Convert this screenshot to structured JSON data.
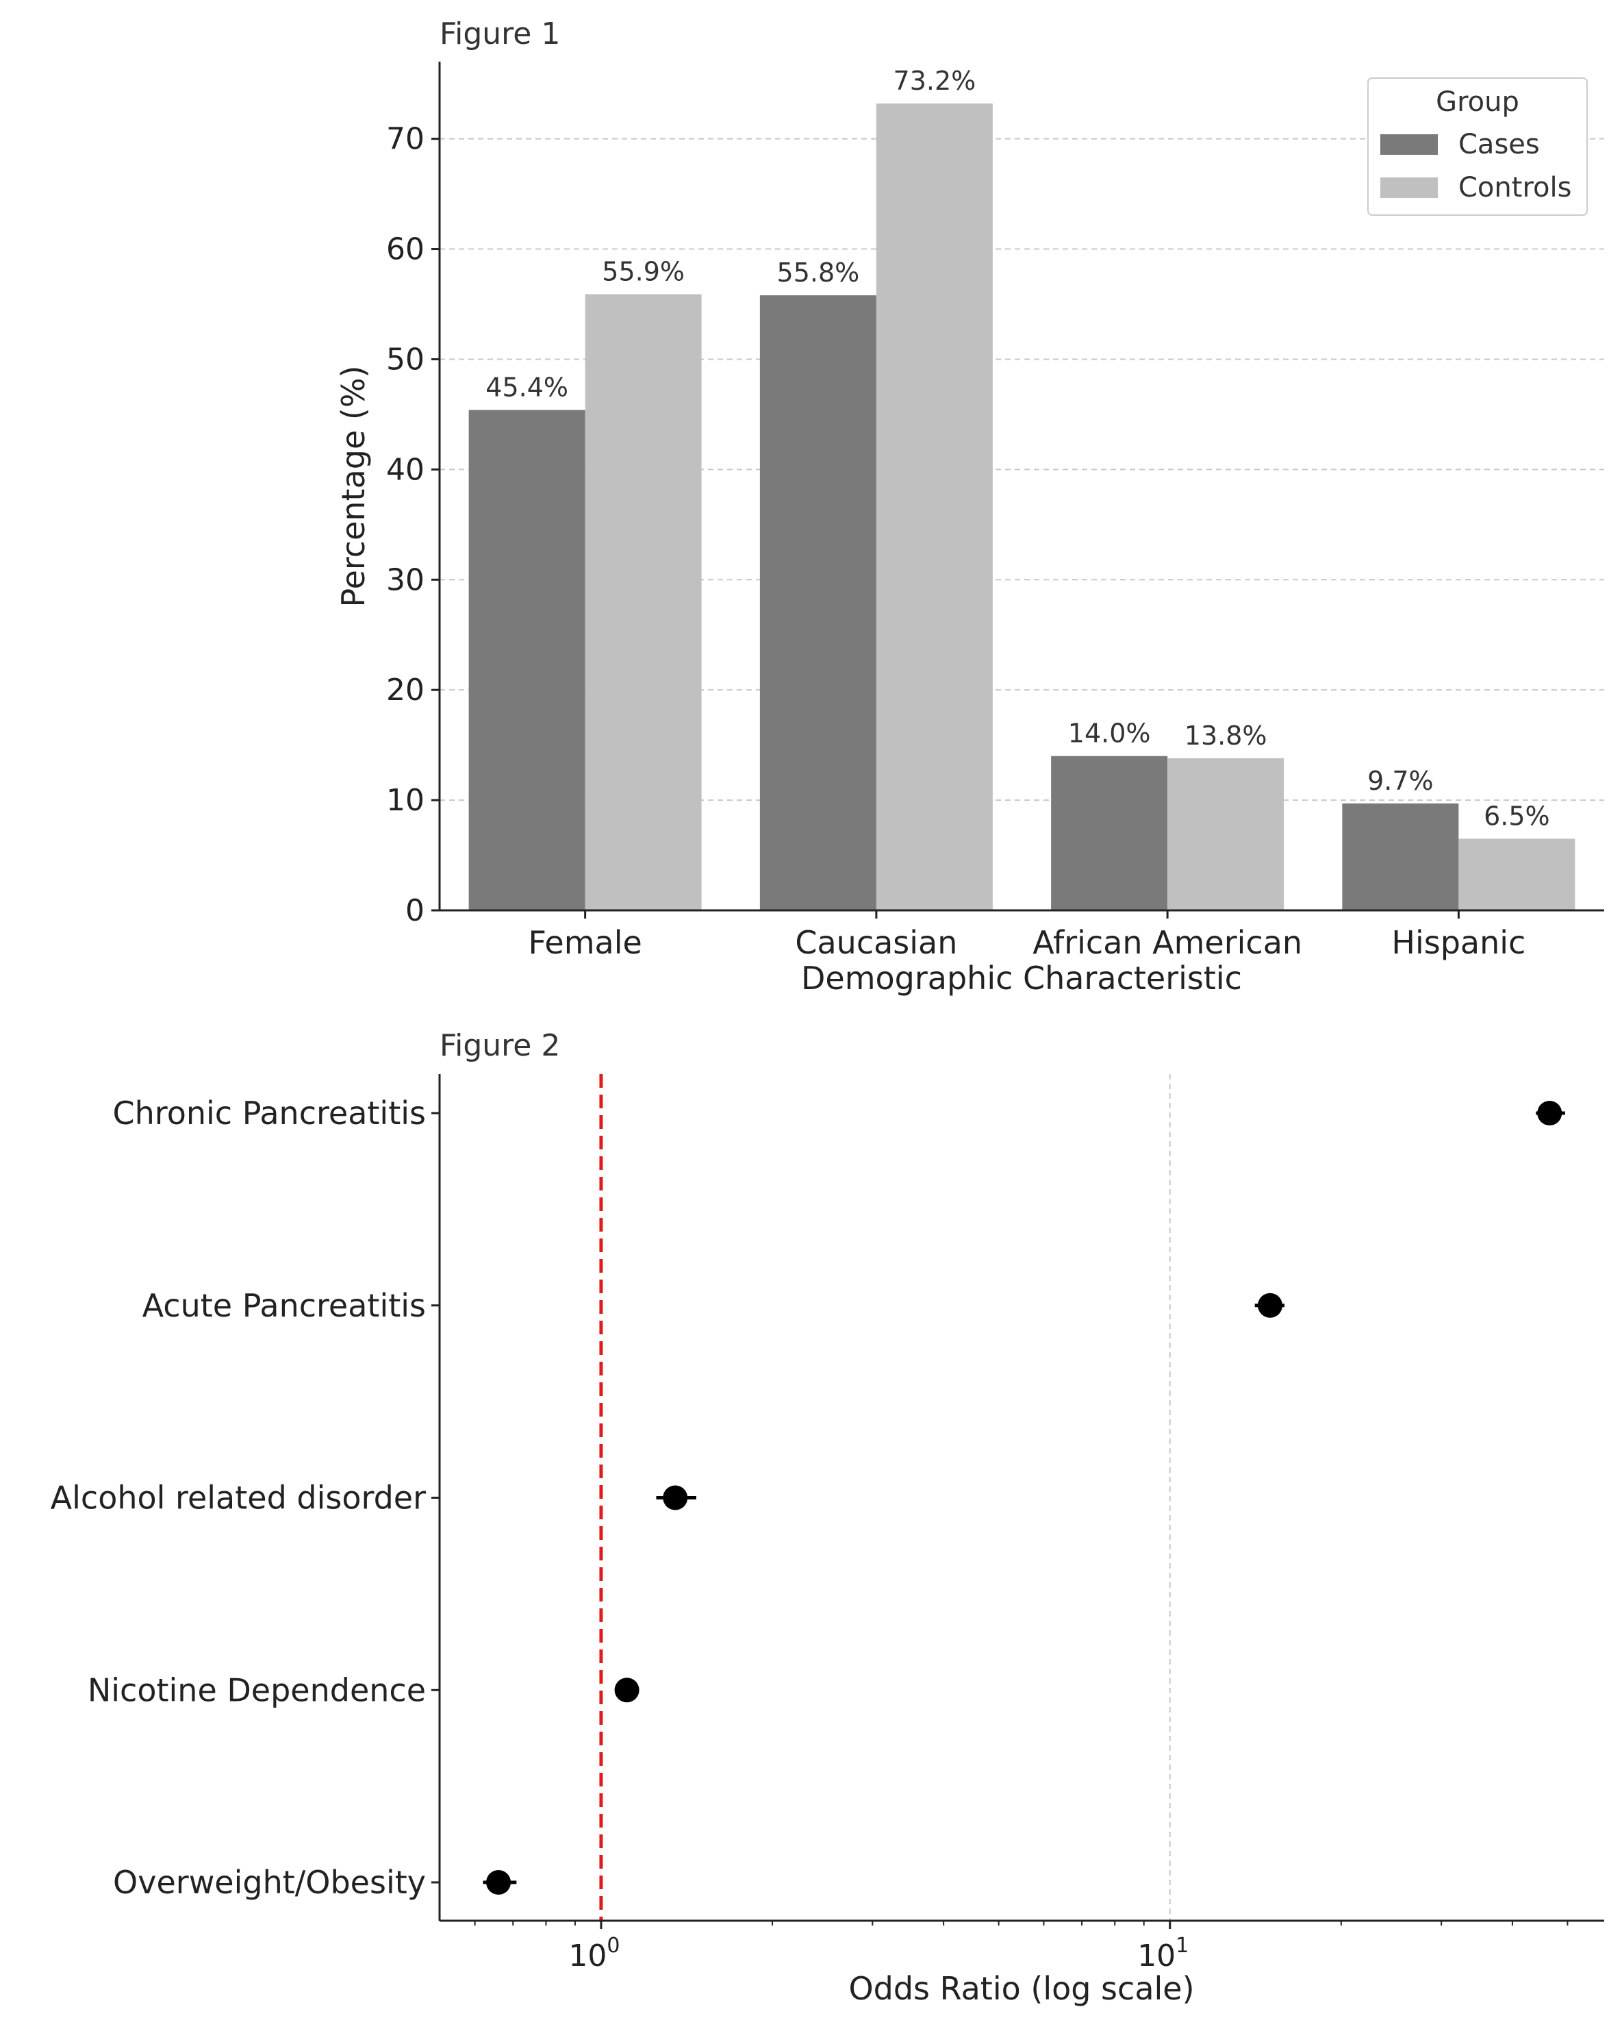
{
  "chart_data": [
    {
      "type": "bar",
      "title": "Figure 1",
      "xlabel": "Demographic Characteristic",
      "ylabel": "Percentage (%)",
      "ylim": [
        0,
        77
      ],
      "yticks": [
        "0",
        "10",
        "20",
        "30",
        "40",
        "50",
        "60",
        "70"
      ],
      "categories": [
        "Female",
        "Caucasian",
        "African American",
        "Hispanic"
      ],
      "series": [
        {
          "name": "Cases",
          "values": [
            45.4,
            55.8,
            14.0,
            9.7
          ],
          "labels": [
            "45.4%",
            "55.8%",
            "14.0%",
            "9.7%"
          ],
          "color": "#7a7a7a"
        },
        {
          "name": "Controls",
          "values": [
            55.9,
            73.2,
            13.8,
            6.5
          ],
          "labels": [
            "55.9%",
            "73.2%",
            "13.8%",
            "6.5%"
          ],
          "color": "#c0c0c0"
        }
      ],
      "legend": {
        "title": "Group",
        "position": "top-right"
      },
      "grid": "y-dashed"
    },
    {
      "type": "scatter",
      "title": "Figure 2",
      "xlabel": "Odds Ratio (log scale)",
      "xscale": "log",
      "xlim": [
        0.52,
        58
      ],
      "xtick_bases": [
        "10",
        "10"
      ],
      "xtick_exps": [
        "0",
        "1"
      ],
      "reference_line": {
        "x": 1.0,
        "color": "#e31a1c",
        "style": "dashed"
      },
      "grid": "x-major-dashed",
      "categories": [
        "Chronic Pancreatitis",
        "Acute Pancreatitis",
        "Alcohol related disorder",
        "Nicotine Dependence",
        "Overweight/Obesity"
      ],
      "points": [
        {
          "label": "Chronic Pancreatitis",
          "or": 46.5,
          "ci": [
            44.0,
            49.5
          ]
        },
        {
          "label": "Acute Pancreatitis",
          "or": 15.0,
          "ci": [
            14.1,
            15.9
          ]
        },
        {
          "label": "Alcohol related disorder",
          "or": 1.35,
          "ci": [
            1.25,
            1.47
          ]
        },
        {
          "label": "Nicotine Dependence",
          "or": 1.11,
          "ci": [
            1.06,
            1.16
          ]
        },
        {
          "label": "Overweight/Obesity",
          "or": 0.66,
          "ci": [
            0.62,
            0.71
          ]
        }
      ]
    }
  ]
}
